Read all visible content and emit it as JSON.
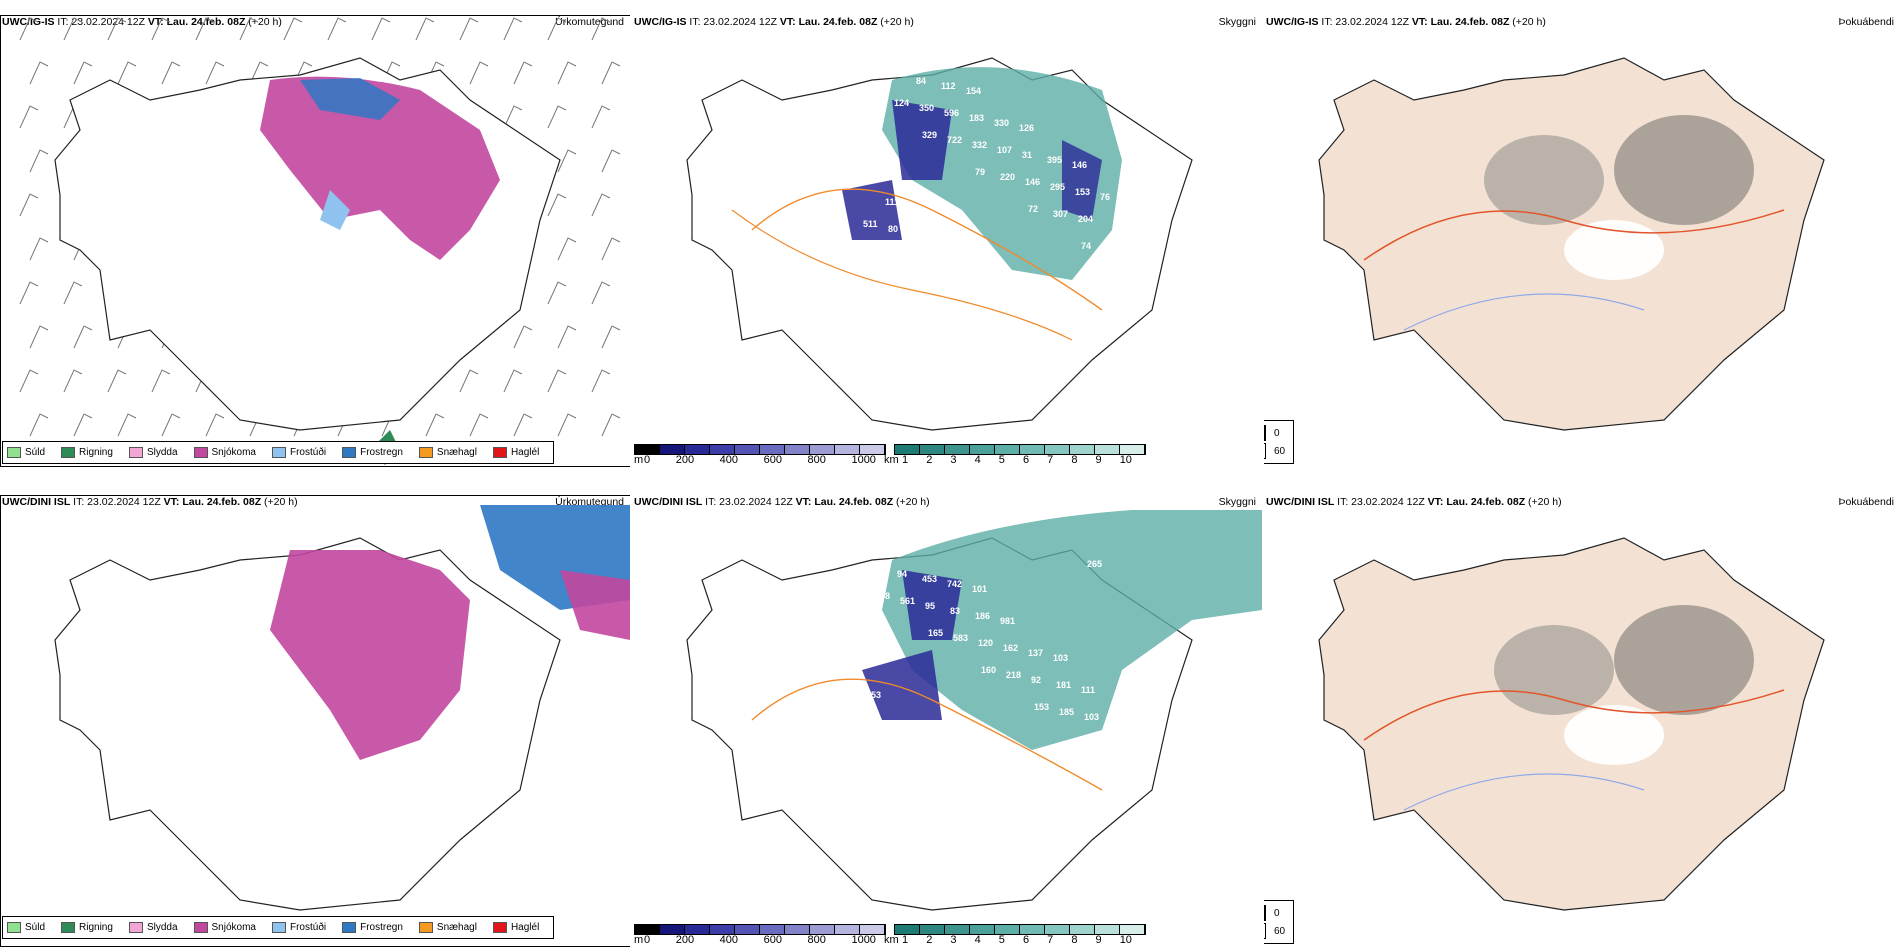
{
  "panels": [
    {
      "model": "UWC/IG-IS",
      "it": "IT: 23.02.2024 12Z",
      "vt": "VT: Lau. 24.feb. 08Z",
      "lead": "(+20 h)",
      "title": "Úrkomutegund"
    },
    {
      "model": "UWC/IG-IS",
      "it": "IT: 23.02.2024 12Z",
      "vt": "VT: Lau. 24.feb. 08Z",
      "lead": "(+20 h)",
      "title": "Skyggni"
    },
    {
      "model": "UWC/IG-IS",
      "it": "IT: 23.02.2024 12Z",
      "vt": "VT: Lau. 24.feb. 08Z",
      "lead": "(+20 h)",
      "title": "Þokuábendi"
    },
    {
      "model": "UWC/DINI ISL",
      "it": "IT: 23.02.2024 12Z",
      "vt": "VT: Lau. 24.feb. 08Z",
      "lead": "(+20 h)",
      "title": "Úrkomutegund"
    },
    {
      "model": "UWC/DINI ISL",
      "it": "IT: 23.02.2024 12Z",
      "vt": "VT: Lau. 24.feb. 08Z",
      "lead": "(+20 h)",
      "title": "Skyggni"
    },
    {
      "model": "UWC/DINI ISL",
      "it": "IT: 23.02.2024 12Z",
      "vt": "VT: Lau. 24.feb. 08Z",
      "lead": "(+20 h)",
      "title": "Þokuábendi"
    }
  ],
  "precip_legend": [
    {
      "label": "Súld",
      "color": "#8fe08f"
    },
    {
      "label": "Rigning",
      "color": "#2e8b57"
    },
    {
      "label": "Slydda",
      "color": "#f2a6d6"
    },
    {
      "label": "Snjókoma",
      "color": "#c2479e"
    },
    {
      "label": "Frostúði",
      "color": "#8fc2ee"
    },
    {
      "label": "Frostregn",
      "color": "#2f78c4"
    },
    {
      "label": "Snæhagl",
      "color": "#f39a1f"
    },
    {
      "label": "Haglél",
      "color": "#e0161b"
    }
  ],
  "ceiling_bar": {
    "unit": "m",
    "ticks": [
      "0",
      "200",
      "400",
      "600",
      "800",
      "1000"
    ],
    "colors": [
      "#000000",
      "#16167a",
      "#2a2a96",
      "#3e3ea8",
      "#5454b4",
      "#6a6abe",
      "#8282c8",
      "#9c9cd2",
      "#b4b4de",
      "#cacae8"
    ]
  },
  "visibility_bar": {
    "unit": "km",
    "ticks": [
      "1",
      "2",
      "3",
      "4",
      "5",
      "6",
      "7",
      "8",
      "9",
      "10"
    ],
    "colors": [
      "#1f7a74",
      "#2d8780",
      "#3c948c",
      "#4ba199",
      "#5daea6",
      "#70bab3",
      "#86c6c0",
      "#9fd3ce",
      "#bae0dc",
      "#d6ede9"
    ]
  },
  "fog_legend": [
    {
      "label": "0",
      "color": "#000000"
    },
    {
      "label": "60",
      "color": "#ffffff"
    }
  ],
  "visibility_labels_top": [
    "612",
    "329",
    "79",
    "72",
    "74",
    "124",
    "722",
    "220",
    "307",
    "475",
    "350",
    "332",
    "146",
    "204",
    "100",
    "596",
    "107",
    "295",
    "511",
    "84",
    "183",
    "31",
    "153",
    "80",
    "112",
    "330",
    "395",
    "76",
    "184",
    "154",
    "126",
    "146",
    "111"
  ],
  "visibility_labels_bottom": [
    "158",
    "165",
    "160",
    "153",
    "265",
    "561",
    "583",
    "218",
    "185",
    "271",
    "95",
    "120",
    "92",
    "103",
    "94",
    "83",
    "162",
    "181",
    "77",
    "453",
    "186",
    "137",
    "111",
    "27",
    "742",
    "981",
    "103",
    "153",
    "156",
    "101"
  ]
}
